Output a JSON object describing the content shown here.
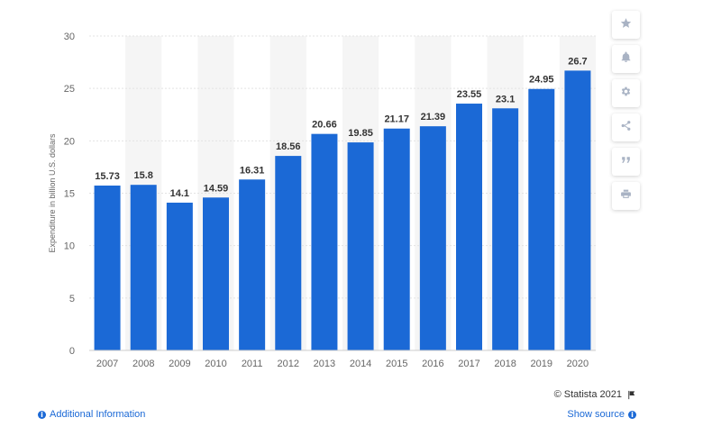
{
  "chart_data": {
    "type": "bar",
    "categories": [
      "2007",
      "2008",
      "2009",
      "2010",
      "2011",
      "2012",
      "2013",
      "2014",
      "2015",
      "2016",
      "2017",
      "2018",
      "2019",
      "2020"
    ],
    "values": [
      15.73,
      15.8,
      14.1,
      14.59,
      16.31,
      18.56,
      20.66,
      19.85,
      21.17,
      21.39,
      23.55,
      23.1,
      24.95,
      26.7
    ],
    "value_labels": [
      "15.73",
      "15.8",
      "14.1",
      "14.59",
      "16.31",
      "18.56",
      "20.66",
      "19.85",
      "21.17",
      "21.39",
      "23.55",
      "23.1",
      "24.95",
      "26.7"
    ],
    "ylabel": "Expenditure in billion U.S. dollars",
    "xlabel": "",
    "ylim": [
      0,
      30
    ],
    "yticks": [
      0,
      5,
      10,
      15,
      20,
      25,
      30
    ],
    "grid": true,
    "bar_color": "#1b69d6",
    "band_color": "#f5f5f5"
  },
  "toolbar": {
    "items": [
      {
        "name": "star-icon"
      },
      {
        "name": "bell-icon"
      },
      {
        "name": "gear-icon"
      },
      {
        "name": "share-icon"
      },
      {
        "name": "quote-icon"
      },
      {
        "name": "print-icon"
      }
    ]
  },
  "footer": {
    "copyright": "© Statista 2021",
    "additional_info": "Additional Information",
    "show_source": "Show source"
  }
}
